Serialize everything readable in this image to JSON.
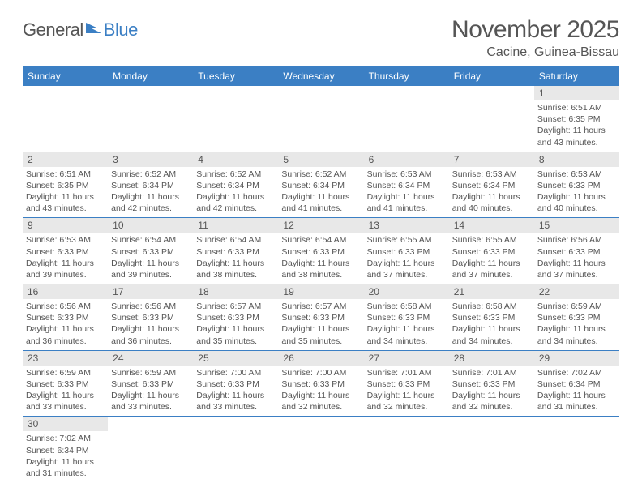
{
  "logo": {
    "general": "General",
    "blue": "Blue"
  },
  "title": "November 2025",
  "location": "Cacine, Guinea-Bissau",
  "colors": {
    "header_bg": "#3b7fc4",
    "header_fg": "#ffffff",
    "daynum_bg": "#e8e8e8",
    "text": "#555555",
    "border": "#3b7fc4"
  },
  "daynames": [
    "Sunday",
    "Monday",
    "Tuesday",
    "Wednesday",
    "Thursday",
    "Friday",
    "Saturday"
  ],
  "weeks": [
    [
      null,
      null,
      null,
      null,
      null,
      null,
      {
        "n": "1",
        "sr": "6:51 AM",
        "ss": "6:35 PM",
        "dl": "11 hours and 43 minutes."
      }
    ],
    [
      {
        "n": "2",
        "sr": "6:51 AM",
        "ss": "6:35 PM",
        "dl": "11 hours and 43 minutes."
      },
      {
        "n": "3",
        "sr": "6:52 AM",
        "ss": "6:34 PM",
        "dl": "11 hours and 42 minutes."
      },
      {
        "n": "4",
        "sr": "6:52 AM",
        "ss": "6:34 PM",
        "dl": "11 hours and 42 minutes."
      },
      {
        "n": "5",
        "sr": "6:52 AM",
        "ss": "6:34 PM",
        "dl": "11 hours and 41 minutes."
      },
      {
        "n": "6",
        "sr": "6:53 AM",
        "ss": "6:34 PM",
        "dl": "11 hours and 41 minutes."
      },
      {
        "n": "7",
        "sr": "6:53 AM",
        "ss": "6:34 PM",
        "dl": "11 hours and 40 minutes."
      },
      {
        "n": "8",
        "sr": "6:53 AM",
        "ss": "6:33 PM",
        "dl": "11 hours and 40 minutes."
      }
    ],
    [
      {
        "n": "9",
        "sr": "6:53 AM",
        "ss": "6:33 PM",
        "dl": "11 hours and 39 minutes."
      },
      {
        "n": "10",
        "sr": "6:54 AM",
        "ss": "6:33 PM",
        "dl": "11 hours and 39 minutes."
      },
      {
        "n": "11",
        "sr": "6:54 AM",
        "ss": "6:33 PM",
        "dl": "11 hours and 38 minutes."
      },
      {
        "n": "12",
        "sr": "6:54 AM",
        "ss": "6:33 PM",
        "dl": "11 hours and 38 minutes."
      },
      {
        "n": "13",
        "sr": "6:55 AM",
        "ss": "6:33 PM",
        "dl": "11 hours and 37 minutes."
      },
      {
        "n": "14",
        "sr": "6:55 AM",
        "ss": "6:33 PM",
        "dl": "11 hours and 37 minutes."
      },
      {
        "n": "15",
        "sr": "6:56 AM",
        "ss": "6:33 PM",
        "dl": "11 hours and 37 minutes."
      }
    ],
    [
      {
        "n": "16",
        "sr": "6:56 AM",
        "ss": "6:33 PM",
        "dl": "11 hours and 36 minutes."
      },
      {
        "n": "17",
        "sr": "6:56 AM",
        "ss": "6:33 PM",
        "dl": "11 hours and 36 minutes."
      },
      {
        "n": "18",
        "sr": "6:57 AM",
        "ss": "6:33 PM",
        "dl": "11 hours and 35 minutes."
      },
      {
        "n": "19",
        "sr": "6:57 AM",
        "ss": "6:33 PM",
        "dl": "11 hours and 35 minutes."
      },
      {
        "n": "20",
        "sr": "6:58 AM",
        "ss": "6:33 PM",
        "dl": "11 hours and 34 minutes."
      },
      {
        "n": "21",
        "sr": "6:58 AM",
        "ss": "6:33 PM",
        "dl": "11 hours and 34 minutes."
      },
      {
        "n": "22",
        "sr": "6:59 AM",
        "ss": "6:33 PM",
        "dl": "11 hours and 34 minutes."
      }
    ],
    [
      {
        "n": "23",
        "sr": "6:59 AM",
        "ss": "6:33 PM",
        "dl": "11 hours and 33 minutes."
      },
      {
        "n": "24",
        "sr": "6:59 AM",
        "ss": "6:33 PM",
        "dl": "11 hours and 33 minutes."
      },
      {
        "n": "25",
        "sr": "7:00 AM",
        "ss": "6:33 PM",
        "dl": "11 hours and 33 minutes."
      },
      {
        "n": "26",
        "sr": "7:00 AM",
        "ss": "6:33 PM",
        "dl": "11 hours and 32 minutes."
      },
      {
        "n": "27",
        "sr": "7:01 AM",
        "ss": "6:33 PM",
        "dl": "11 hours and 32 minutes."
      },
      {
        "n": "28",
        "sr": "7:01 AM",
        "ss": "6:33 PM",
        "dl": "11 hours and 32 minutes."
      },
      {
        "n": "29",
        "sr": "7:02 AM",
        "ss": "6:34 PM",
        "dl": "11 hours and 31 minutes."
      }
    ],
    [
      {
        "n": "30",
        "sr": "7:02 AM",
        "ss": "6:34 PM",
        "dl": "11 hours and 31 minutes."
      },
      null,
      null,
      null,
      null,
      null,
      null
    ]
  ],
  "labels": {
    "sunrise": "Sunrise:",
    "sunset": "Sunset:",
    "daylight": "Daylight:"
  }
}
